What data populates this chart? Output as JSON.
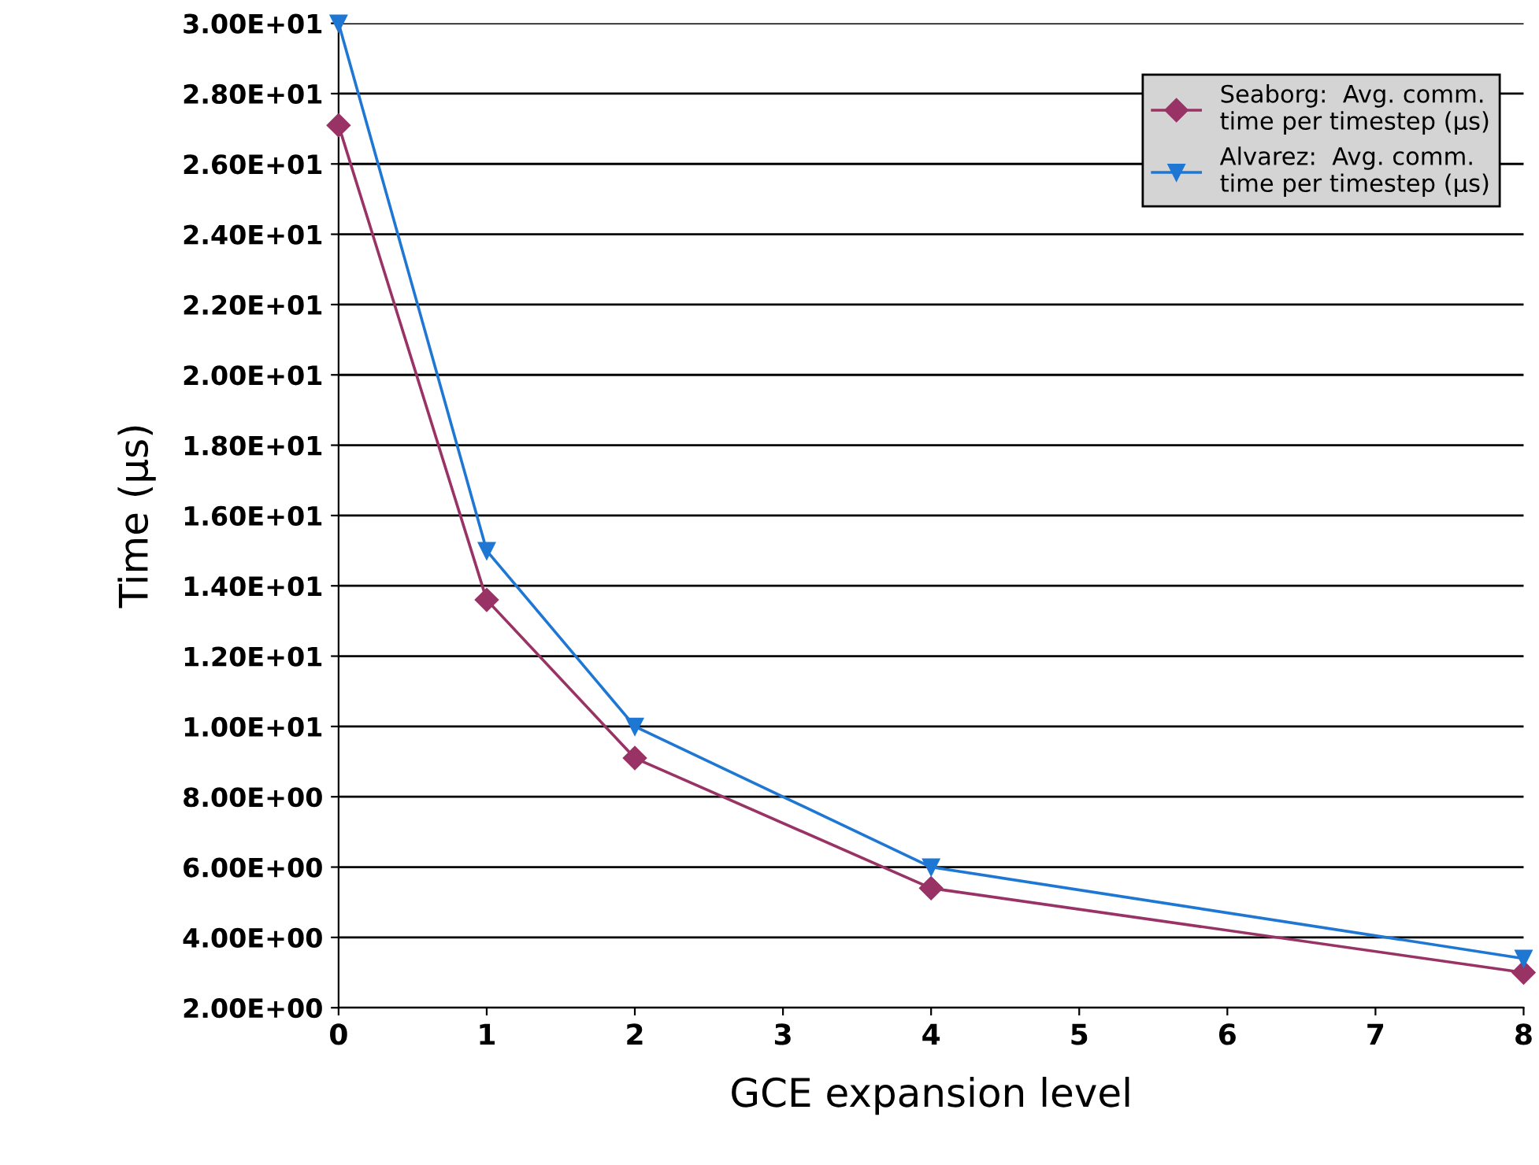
{
  "chart_data": {
    "type": "line",
    "xlabel": "GCE expansion level",
    "ylabel": "Time (µs)",
    "x": [
      0,
      1,
      2,
      4,
      8
    ],
    "series": [
      {
        "name": "Seaborg:  Avg. comm.\ntime per timestep (µs)",
        "color": "#993366",
        "marker": "diamond",
        "values": [
          27.1,
          13.6,
          9.1,
          5.4,
          3.0
        ]
      },
      {
        "name": "Alvarez:  Avg. comm.\ntime per timestep (µs)",
        "color": "#1f77d4",
        "marker": "triangle",
        "values": [
          30.0,
          15.0,
          10.0,
          6.0,
          3.4
        ]
      }
    ],
    "xlim": [
      0,
      8
    ],
    "xticks": [
      0,
      1,
      2,
      3,
      4,
      5,
      6,
      7,
      8
    ],
    "ylim": [
      2,
      30
    ],
    "yticks": [
      {
        "value": 2,
        "label": "2.00E+00"
      },
      {
        "value": 4,
        "label": "4.00E+00"
      },
      {
        "value": 6,
        "label": "6.00E+00"
      },
      {
        "value": 8,
        "label": "8.00E+00"
      },
      {
        "value": 10,
        "label": "1.00E+01"
      },
      {
        "value": 12,
        "label": "1.20E+01"
      },
      {
        "value": 14,
        "label": "1.40E+01"
      },
      {
        "value": 16,
        "label": "1.60E+01"
      },
      {
        "value": 18,
        "label": "1.80E+01"
      },
      {
        "value": 20,
        "label": "2.00E+01"
      },
      {
        "value": 22,
        "label": "2.20E+01"
      },
      {
        "value": 24,
        "label": "2.40E+01"
      },
      {
        "value": 26,
        "label": "2.60E+01"
      },
      {
        "value": 28,
        "label": "2.80E+01"
      },
      {
        "value": 30,
        "label": "3.00E+01"
      }
    ],
    "grid": "y",
    "legend": "top right",
    "line_style": "solid"
  }
}
